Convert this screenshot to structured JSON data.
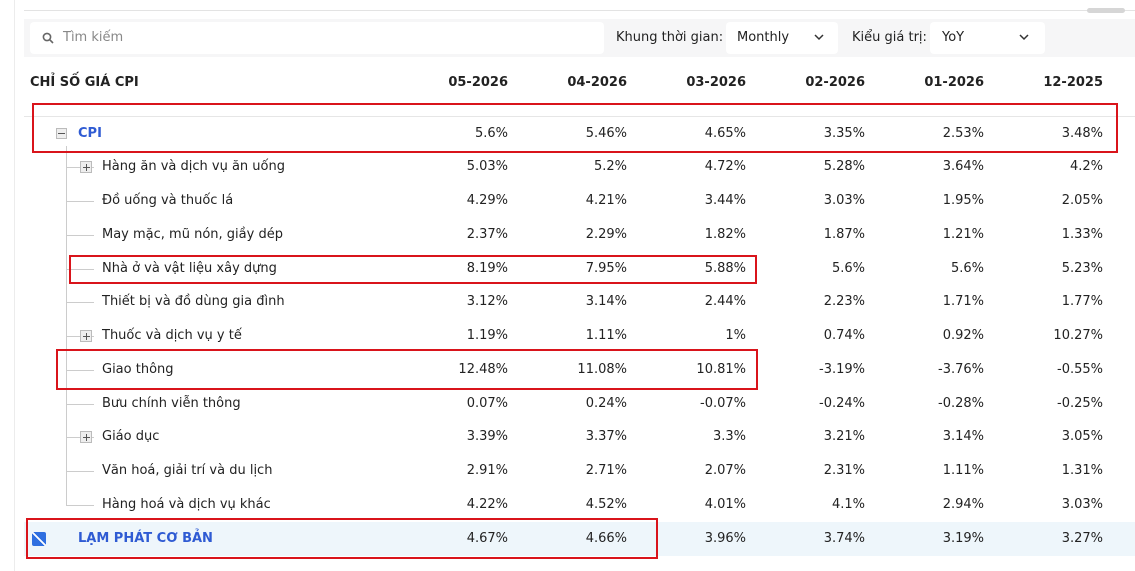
{
  "toolbar": {
    "search_placeholder": "Tìm kiếm",
    "period_label": "Khung thời gian:",
    "period_value": "Monthly",
    "value_type_label": "Kiểu giá trị:",
    "value_type_value": "YoY"
  },
  "table": {
    "header": [
      "CHỈ SỐ GIÁ CPI",
      "05-2026",
      "04-2026",
      "03-2026",
      "02-2026",
      "01-2026",
      "12-2025"
    ],
    "rows": [
      [
        "CPI",
        "5.6%",
        "5.46%",
        "4.65%",
        "3.35%",
        "2.53%",
        "3.48%"
      ],
      [
        "Hàng ăn và dịch vụ ăn uống",
        "5.03%",
        "5.2%",
        "4.72%",
        "5.28%",
        "3.64%",
        "4.2%"
      ],
      [
        "Đồ uống và thuốc lá",
        "4.29%",
        "4.21%",
        "3.44%",
        "3.03%",
        "1.95%",
        "2.05%"
      ],
      [
        "May mặc, mũ nón, giầy dép",
        "2.37%",
        "2.29%",
        "1.82%",
        "1.87%",
        "1.21%",
        "1.33%"
      ],
      [
        "Nhà ở và vật liệu xây dựng",
        "8.19%",
        "7.95%",
        "5.88%",
        "5.6%",
        "5.6%",
        "5.23%"
      ],
      [
        "Thiết bị và đồ dùng gia đình",
        "3.12%",
        "3.14%",
        "2.44%",
        "2.23%",
        "1.71%",
        "1.77%"
      ],
      [
        "Thuốc và dịch vụ y tế",
        "1.19%",
        "1.11%",
        "1%",
        "0.74%",
        "0.92%",
        "10.27%"
      ],
      [
        "Giao thông",
        "12.48%",
        "11.08%",
        "10.81%",
        "-3.19%",
        "-3.76%",
        "-0.55%"
      ],
      [
        "Bưu chính viễn thông",
        "0.07%",
        "0.24%",
        "-0.07%",
        "-0.24%",
        "-0.28%",
        "-0.25%"
      ],
      [
        "Giáo dục",
        "3.39%",
        "3.37%",
        "3.3%",
        "3.21%",
        "3.14%",
        "3.05%"
      ],
      [
        "Văn hoá, giải trí và du lịch",
        "2.91%",
        "2.71%",
        "2.07%",
        "2.31%",
        "1.11%",
        "1.31%"
      ],
      [
        "Hàng hoá và dịch vụ khác",
        "4.22%",
        "4.52%",
        "4.01%",
        "4.1%",
        "2.94%",
        "3.03%"
      ],
      [
        "LẠM PHÁT CƠ BẢN",
        "4.67%",
        "4.66%",
        "3.96%",
        "3.74%",
        "3.19%",
        "3.27%"
      ]
    ]
  }
}
